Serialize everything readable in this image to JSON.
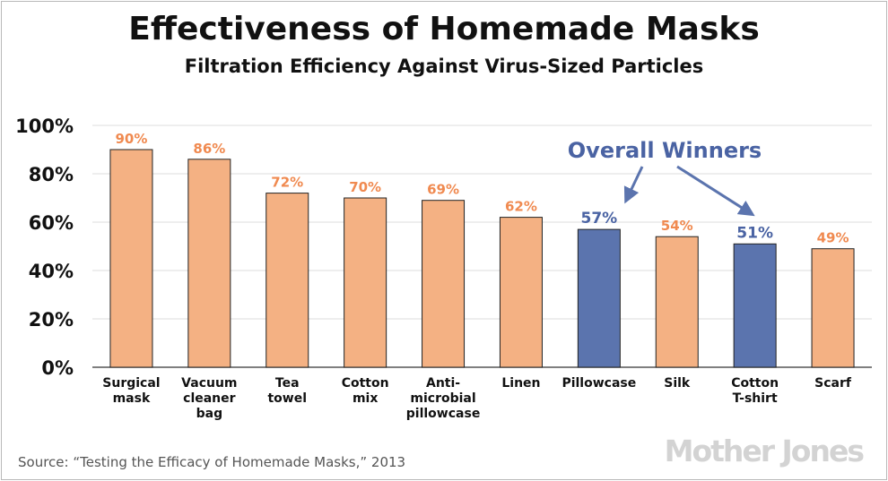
{
  "header": {
    "title": "Effectiveness of Homemade Masks",
    "subtitle": "Filtration Efficiency Against Virus-Sized Particles"
  },
  "footer": {
    "source": "Source: “Testing the Efficacy of Homemade Masks,” 2013",
    "logo": "Mother Jones"
  },
  "chart_data": {
    "type": "bar",
    "title": "Effectiveness of Homemade Masks",
    "subtitle": "Filtration Efficiency Against Virus-Sized Particles",
    "categories": [
      [
        "Surgical",
        "mask"
      ],
      [
        "Vacuum",
        "cleaner",
        "bag"
      ],
      [
        "Tea",
        "towel"
      ],
      [
        "Cotton",
        "mix"
      ],
      [
        "Anti-",
        "microbial",
        "pillowcase"
      ],
      [
        "Linen"
      ],
      [
        "Pillowcase"
      ],
      [
        "Silk"
      ],
      [
        "Cotton",
        "T-shirt"
      ],
      [
        "Scarf"
      ]
    ],
    "values": [
      90,
      86,
      72,
      70,
      69,
      62,
      57,
      54,
      51,
      49
    ],
    "value_labels": [
      "90%",
      "86%",
      "72%",
      "70%",
      "69%",
      "62%",
      "57%",
      "54%",
      "51%",
      "49%"
    ],
    "highlighted": [
      6,
      8
    ],
    "yticks": [
      "0%",
      "20%",
      "40%",
      "60%",
      "80%",
      "100%"
    ],
    "ylim": [
      0,
      100
    ],
    "grid": true,
    "annotation": "Overall Winners",
    "colors": {
      "bar": "#f4b183",
      "bar_label": "#f08a50",
      "highlight": "#5b74ae",
      "highlight_label": "#4a63a3",
      "grid": "#dcdcdc",
      "axis": "#555555"
    }
  }
}
